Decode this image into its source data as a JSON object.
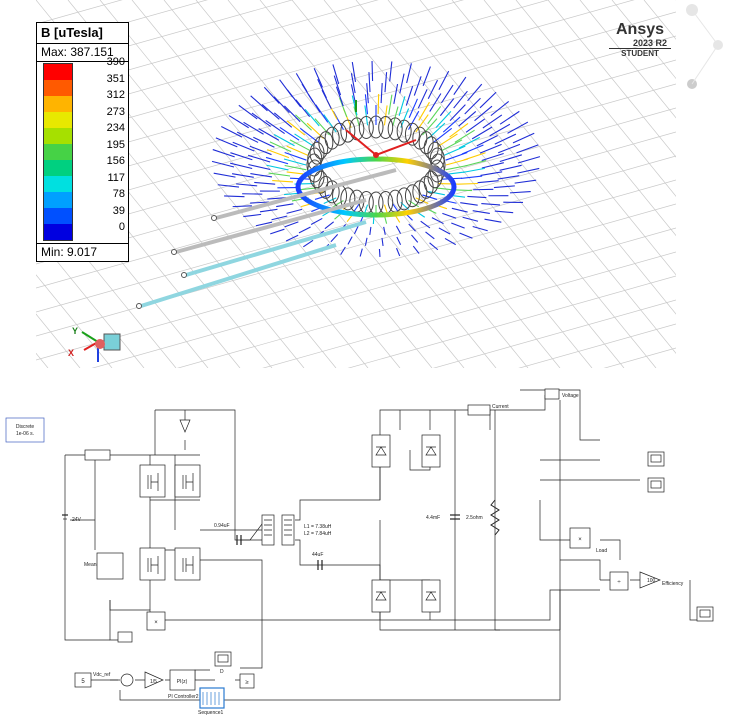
{
  "legend": {
    "title": "B [uTesla]",
    "max": "Max: 387.151",
    "min": "Min:  9.017",
    "ticks": [
      "390",
      "351",
      "312",
      "273",
      "234",
      "195",
      "156",
      "117",
      "78",
      "39",
      "0"
    ]
  },
  "brand": {
    "name": "Ansys",
    "release": "2023 R2",
    "edition": "STUDENT"
  },
  "axes": {
    "y": "Y",
    "x": "X"
  },
  "circuit": {
    "discrete_block": "Discrete\n1e-06 s.",
    "dc_label": "24V",
    "mean_label": "Mean",
    "cap1": "0.94uF",
    "coupling": "L1 = 7.38uH\nL2 = 7.84uH",
    "cap2": "44uF",
    "cap3": "4.4mF",
    "resistor": "2.5ohm",
    "current": "Current",
    "voltage": "Voltage",
    "load": "Load",
    "gain100": "100",
    "efficiency": "Efficiency",
    "const5": "5",
    "vdc_ref": "Vdc_ref",
    "gain_half": "1/5",
    "pi_block": "PI(z)",
    "pi_name": "PI Controller2",
    "d_label": "D",
    "sequence": "Sequence1",
    "ge": "≥"
  }
}
